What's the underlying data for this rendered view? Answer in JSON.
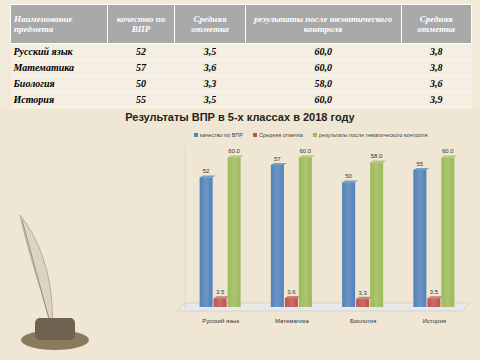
{
  "table": {
    "header": [
      "Наименование предмета",
      "качество по ВПР",
      "Средняя отметка",
      "результаты после тематического контроля",
      "Средняя отметка"
    ],
    "rows": [
      [
        "Русский язык",
        "52",
        "3,5",
        "60,0",
        "3,8"
      ],
      [
        "Математика",
        "57",
        "3,6",
        "60,0",
        "3,8"
      ],
      [
        "Биология",
        "50",
        "3,3",
        "58,0",
        "3,6"
      ],
      [
        "История",
        "55",
        "3,5",
        "60,0",
        "3,9"
      ]
    ]
  },
  "chart_data": {
    "type": "bar",
    "title": "Результаты ВПР в 5-х классах в 2018 году",
    "categories": [
      "Русский язык",
      "Математика",
      "Биология",
      "История"
    ],
    "series": [
      {
        "name": "качество по ВПР",
        "color": "#4f81bd",
        "values": [
          52,
          57,
          50,
          55
        ]
      },
      {
        "name": "Средняя отметка",
        "color": "#c0504d",
        "values": [
          3.5,
          3.6,
          3.3,
          3.5
        ]
      },
      {
        "name": "результаты после тематического контроля",
        "color": "#9bbb59",
        "values": [
          60,
          60,
          58,
          60
        ],
        "value_labels": [
          "60.0",
          "60.0",
          "58.0",
          "60.0"
        ]
      }
    ],
    "ylim": [
      0,
      65
    ],
    "legend": "top",
    "data_labels": true,
    "tick_labels": "x",
    "grid": false
  }
}
